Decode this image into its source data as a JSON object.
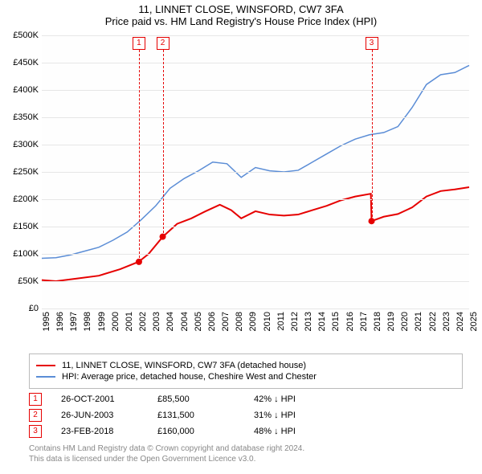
{
  "title": {
    "line1": "11, LINNET CLOSE, WINSFORD, CW7 3FA",
    "line2": "Price paid vs. HM Land Registry's House Price Index (HPI)"
  },
  "chart": {
    "type": "line",
    "background_color": "#ffffff",
    "grid_color": "#e6e6e6",
    "x_year_min": 1995,
    "x_year_max": 2025,
    "x_ticks": [
      1995,
      1996,
      1997,
      1998,
      1999,
      2000,
      2001,
      2002,
      2003,
      2004,
      2004,
      2005,
      2006,
      2007,
      2008,
      2009,
      2010,
      2011,
      2012,
      2013,
      2014,
      2015,
      2016,
      2017,
      2018,
      2019,
      2020,
      2021,
      2022,
      2023,
      2024,
      2025
    ],
    "ylim": [
      0,
      500000
    ],
    "y_ticks": [
      0,
      50000,
      100000,
      150000,
      200000,
      250000,
      300000,
      350000,
      400000,
      450000,
      500000
    ],
    "y_tick_labels": [
      "£0",
      "£50K",
      "£100K",
      "£150K",
      "£200K",
      "£250K",
      "£300K",
      "£350K",
      "£400K",
      "£450K",
      "£500K"
    ],
    "series": {
      "property": {
        "label": "11, LINNET CLOSE, WINSFORD, CW7 3FA (detached house)",
        "color": "#e60000",
        "line_width": 2,
        "points": [
          {
            "x": 1995.0,
            "y": 52000
          },
          {
            "x": 1996.0,
            "y": 50000
          },
          {
            "x": 1997.5,
            "y": 55000
          },
          {
            "x": 1999.0,
            "y": 60000
          },
          {
            "x": 2000.5,
            "y": 72000
          },
          {
            "x": 2001.8,
            "y": 85500
          },
          {
            "x": 2002.5,
            "y": 100000
          },
          {
            "x": 2003.5,
            "y": 131500
          },
          {
            "x": 2004.5,
            "y": 155000
          },
          {
            "x": 2005.5,
            "y": 165000
          },
          {
            "x": 2006.5,
            "y": 178000
          },
          {
            "x": 2007.5,
            "y": 190000
          },
          {
            "x": 2008.3,
            "y": 180000
          },
          {
            "x": 2009.0,
            "y": 165000
          },
          {
            "x": 2010.0,
            "y": 178000
          },
          {
            "x": 2011.0,
            "y": 172000
          },
          {
            "x": 2012.0,
            "y": 170000
          },
          {
            "x": 2013.0,
            "y": 172000
          },
          {
            "x": 2014.0,
            "y": 180000
          },
          {
            "x": 2015.0,
            "y": 188000
          },
          {
            "x": 2016.0,
            "y": 198000
          },
          {
            "x": 2017.0,
            "y": 205000
          },
          {
            "x": 2018.1,
            "y": 210000
          },
          {
            "x": 2018.15,
            "y": 160000
          },
          {
            "x": 2019.0,
            "y": 168000
          },
          {
            "x": 2020.0,
            "y": 173000
          },
          {
            "x": 2021.0,
            "y": 185000
          },
          {
            "x": 2022.0,
            "y": 205000
          },
          {
            "x": 2023.0,
            "y": 215000
          },
          {
            "x": 2024.0,
            "y": 218000
          },
          {
            "x": 2025.0,
            "y": 222000
          }
        ]
      },
      "hpi": {
        "label": "HPI: Average price, detached house, Cheshire West and Chester",
        "color": "#5b8dd6",
        "line_width": 1.5,
        "points": [
          {
            "x": 1995.0,
            "y": 92000
          },
          {
            "x": 1996.0,
            "y": 93000
          },
          {
            "x": 1997.0,
            "y": 98000
          },
          {
            "x": 1998.0,
            "y": 105000
          },
          {
            "x": 1999.0,
            "y": 112000
          },
          {
            "x": 2000.0,
            "y": 125000
          },
          {
            "x": 2001.0,
            "y": 140000
          },
          {
            "x": 2002.0,
            "y": 163000
          },
          {
            "x": 2003.0,
            "y": 188000
          },
          {
            "x": 2004.0,
            "y": 220000
          },
          {
            "x": 2005.0,
            "y": 238000
          },
          {
            "x": 2006.0,
            "y": 252000
          },
          {
            "x": 2007.0,
            "y": 268000
          },
          {
            "x": 2008.0,
            "y": 265000
          },
          {
            "x": 2009.0,
            "y": 240000
          },
          {
            "x": 2010.0,
            "y": 258000
          },
          {
            "x": 2011.0,
            "y": 252000
          },
          {
            "x": 2012.0,
            "y": 250000
          },
          {
            "x": 2013.0,
            "y": 253000
          },
          {
            "x": 2014.0,
            "y": 268000
          },
          {
            "x": 2015.0,
            "y": 283000
          },
          {
            "x": 2016.0,
            "y": 298000
          },
          {
            "x": 2017.0,
            "y": 310000
          },
          {
            "x": 2018.0,
            "y": 318000
          },
          {
            "x": 2019.0,
            "y": 322000
          },
          {
            "x": 2020.0,
            "y": 333000
          },
          {
            "x": 2021.0,
            "y": 368000
          },
          {
            "x": 2022.0,
            "y": 410000
          },
          {
            "x": 2023.0,
            "y": 428000
          },
          {
            "x": 2024.0,
            "y": 432000
          },
          {
            "x": 2025.0,
            "y": 445000
          }
        ]
      }
    },
    "sale_markers": [
      {
        "n": "1",
        "x": 2001.82,
        "y": 85500,
        "color": "#e60000"
      },
      {
        "n": "2",
        "x": 2003.49,
        "y": 131500,
        "color": "#e60000"
      },
      {
        "n": "3",
        "x": 2018.15,
        "y": 160000,
        "color": "#e60000"
      }
    ]
  },
  "legend": {
    "rows": [
      {
        "color": "#e60000",
        "label": "11, LINNET CLOSE, WINSFORD, CW7 3FA (detached house)"
      },
      {
        "color": "#5b8dd6",
        "label": "HPI: Average price, detached house, Cheshire West and Chester"
      }
    ]
  },
  "sales": [
    {
      "n": "1",
      "date": "26-OCT-2001",
      "price": "£85,500",
      "pct": "42% ↓ HPI",
      "color": "#e60000"
    },
    {
      "n": "2",
      "date": "26-JUN-2003",
      "price": "£131,500",
      "pct": "31% ↓ HPI",
      "color": "#e60000"
    },
    {
      "n": "3",
      "date": "23-FEB-2018",
      "price": "£160,000",
      "pct": "48% ↓ HPI",
      "color": "#e60000"
    }
  ],
  "footer": {
    "line1": "Contains HM Land Registry data © Crown copyright and database right 2024.",
    "line2": "This data is licensed under the Open Government Licence v3.0."
  }
}
